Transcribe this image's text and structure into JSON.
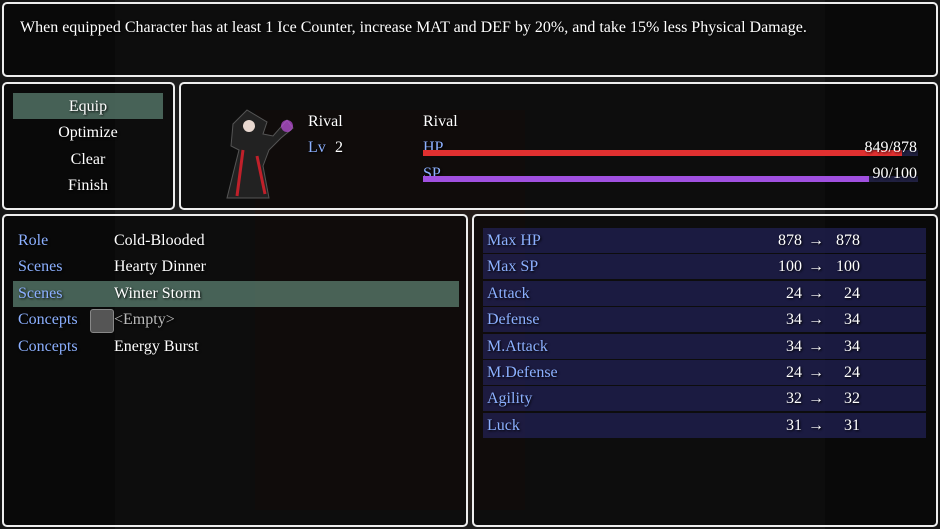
{
  "help": {
    "text": "When equipped Character has at least 1 Ice Counter, increase MAT and DEF by 20%, and take 15% less Physical Damage."
  },
  "commands": {
    "items": [
      "Equip",
      "Optimize",
      "Clear",
      "Finish"
    ],
    "selected": 0
  },
  "actor": {
    "name": "Rival",
    "class": "Rival",
    "level_label": "Lv",
    "level": "2",
    "hp": {
      "label": "HP",
      "text": "849/878"
    },
    "sp": {
      "label": "SP",
      "text": "90/100"
    }
  },
  "slots": {
    "selected": 2,
    "rows": [
      {
        "slot": "Role",
        "item": "Cold-Blooded"
      },
      {
        "slot": "Scenes",
        "item": "Hearty Dinner"
      },
      {
        "slot": "Scenes",
        "item": "Winter Storm"
      },
      {
        "slot": "Concepts",
        "item": "<Empty>",
        "empty": true
      },
      {
        "slot": "Concepts",
        "item": "Energy Burst"
      }
    ]
  },
  "params": {
    "rows": [
      {
        "name": "Max HP",
        "current": "878",
        "arrow": "→",
        "new": "878"
      },
      {
        "name": "Max SP",
        "current": "100",
        "arrow": "→",
        "new": "100"
      },
      {
        "name": "Attack",
        "current": "24",
        "arrow": "→",
        "new": "24"
      },
      {
        "name": "Defense",
        "current": "34",
        "arrow": "→",
        "new": "34"
      },
      {
        "name": "M.Attack",
        "current": "34",
        "arrow": "→",
        "new": "34"
      },
      {
        "name": "M.Defense",
        "current": "24",
        "arrow": "→",
        "new": "24"
      },
      {
        "name": "Agility",
        "current": "32",
        "arrow": "→",
        "new": "32"
      },
      {
        "name": "Luck",
        "current": "31",
        "arrow": "→",
        "new": "31"
      }
    ]
  }
}
